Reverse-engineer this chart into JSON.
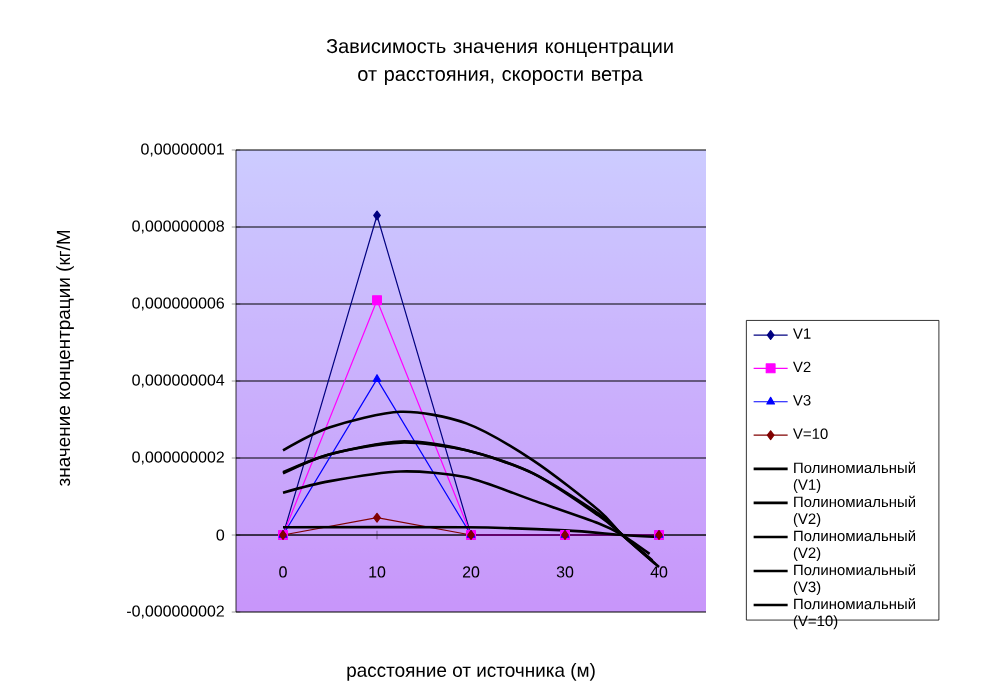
{
  "chart_data": {
    "type": "line",
    "title": "Зависимость значения концентрации от расстояния, скорости ветра",
    "xlabel": "расстояние от источника (м)",
    "ylabel": "значение концентрации (кг/М",
    "x": [
      0,
      10,
      20,
      30,
      40
    ],
    "xlim": [
      -5,
      45
    ],
    "xticks": [
      0,
      10,
      20,
      30,
      40
    ],
    "ylim": [
      -2e-09,
      1e-08
    ],
    "yticks": [
      {
        "value": -2e-09,
        "label": "-0,000000002"
      },
      {
        "value": 0,
        "label": "0"
      },
      {
        "value": 2e-09,
        "label": "0,000000002"
      },
      {
        "value": 4e-09,
        "label": "0,000000004"
      },
      {
        "value": 6e-09,
        "label": "0,000000006"
      },
      {
        "value": 8e-09,
        "label": "0,000000008"
      },
      {
        "value": 1e-08,
        "label": "0,00000001"
      }
    ],
    "grid": "y",
    "legend": "right",
    "line_style": "solid",
    "series": [
      {
        "name": "V1",
        "color": "#000080",
        "marker": "diamond",
        "values": [
          0,
          8.3e-09,
          0,
          0,
          0
        ]
      },
      {
        "name": "V2",
        "color": "#ff00ff",
        "marker": "square",
        "values": [
          0,
          6.1e-09,
          0,
          0,
          0
        ]
      },
      {
        "name": "V3",
        "color": "#0000ff",
        "marker": "triangle",
        "values": [
          0,
          4.05e-09,
          0,
          0,
          0
        ]
      },
      {
        "name": "V=10",
        "color": "#800000",
        "marker": "diamond",
        "values": [
          0,
          4.5e-10,
          0,
          0,
          0
        ]
      },
      {
        "name": "Полиномиальный (V1)",
        "color": "#000000",
        "marker": "none",
        "x": [
          0,
          5,
          12.5,
          19.5,
          26.6,
          33.6,
          36.1,
          40
        ],
        "values": [
          2.2e-09,
          2.8e-09,
          3.2e-09,
          2.9e-09,
          1.94e-09,
          6.4e-10,
          0,
          -8.3e-10
        ]
      },
      {
        "name": "Полиномиальный (V2)",
        "color": "#000000",
        "marker": "none",
        "x": [
          0,
          5,
          12.5,
          19.5,
          26.6,
          33.6,
          36.1,
          39.3
        ],
        "values": [
          1.63e-09,
          2.1e-09,
          2.43e-09,
          2.2e-09,
          1.6e-09,
          5.5e-10,
          0,
          -6.6e-10
        ]
      },
      {
        "name": "Полиномиальный (V2)",
        "color": "#000000",
        "marker": "none",
        "x": [
          0,
          5,
          12.5,
          19.5,
          26.6,
          33.6,
          36.1,
          39.6
        ],
        "values": [
          1.6e-09,
          2.1e-09,
          2.4e-09,
          2.2e-09,
          1.6e-09,
          5e-10,
          0,
          -7.5e-10
        ]
      },
      {
        "name": "Полиномиальный (V3)",
        "color": "#000000",
        "marker": "none",
        "x": [
          0,
          5,
          12.5,
          19.5,
          26.6,
          33.6,
          36.1,
          39
        ],
        "values": [
          1.1e-09,
          1.4e-09,
          1.65e-09,
          1.5e-09,
          9e-10,
          3e-10,
          0,
          -4.9e-10
        ]
      },
      {
        "name": "Полиномиальный (V=10)",
        "color": "#000000",
        "marker": "none",
        "x": [
          0,
          19.5,
          30,
          36.1,
          40
        ],
        "values": [
          2e-10,
          2e-10,
          1.2e-10,
          0,
          -5e-11
        ]
      }
    ]
  }
}
